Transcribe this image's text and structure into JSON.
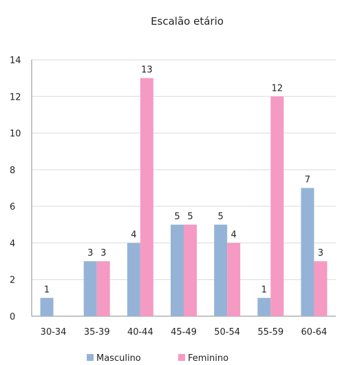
{
  "chart_data": {
    "type": "bar",
    "title": "Escalão etário",
    "xlabel": "",
    "ylabel": "",
    "categories": [
      "30-34",
      "35-39",
      "40-44",
      "45-49",
      "50-54",
      "55-59",
      "60-64"
    ],
    "series": [
      {
        "name": "Masculino",
        "color": "#95b3d7",
        "values": [
          1,
          3,
          4,
          5,
          5,
          1,
          7
        ]
      },
      {
        "name": "Feminino",
        "color": "#f59ac2",
        "values": [
          0,
          3,
          13,
          5,
          4,
          12,
          3
        ]
      }
    ],
    "ylim": [
      0,
      14
    ],
    "yticks": [
      0,
      2,
      4,
      6,
      8,
      10,
      12,
      14
    ],
    "grid": true,
    "legend": "bottom"
  }
}
